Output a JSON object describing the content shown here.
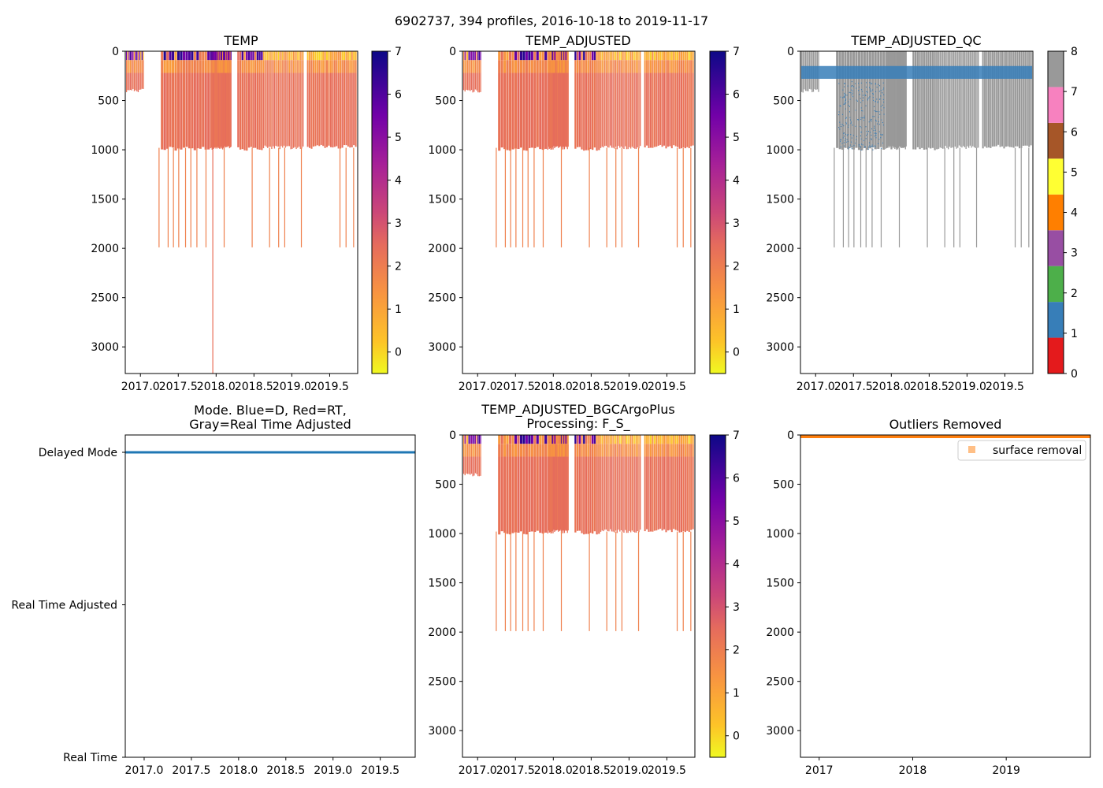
{
  "figure_title": "6902737, 394 profiles, 2016-10-18 to 2019-11-17",
  "colors": {
    "mode_line": "#1f77b4",
    "outlier_marker": "#ff7f0e",
    "qc_gray": "#999999",
    "qc_blue": "#377eb8"
  },
  "chart_data": [
    {
      "id": "temp",
      "type": "heatmap",
      "title": "TEMP",
      "x_range": [
        2016.8,
        2019.87
      ],
      "ylim": [
        3270,
        0
      ],
      "y_ticks": [
        0,
        500,
        1000,
        1500,
        2000,
        2500,
        3000
      ],
      "x_ticks": [
        2017.0,
        2017.5,
        2018.0,
        2018.5,
        2019.0,
        2019.5
      ],
      "x_tick_labels": [
        "2017.0",
        "2017.5",
        "2018.0",
        "2018.5",
        "2019.0",
        "2019.5"
      ],
      "colorbar": {
        "range": [
          -0.5,
          7
        ],
        "ticks": [
          "0",
          "1",
          "2",
          "3",
          "4",
          "5",
          "6",
          "7"
        ]
      },
      "deep_profile_max_depth": 3270
    },
    {
      "id": "temp_adjusted",
      "type": "heatmap",
      "title": "TEMP_ADJUSTED",
      "x_range": [
        2016.8,
        2019.87
      ],
      "ylim": [
        3270,
        0
      ],
      "y_ticks": [
        0,
        500,
        1000,
        1500,
        2000,
        2500,
        3000
      ],
      "x_ticks": [
        2017.0,
        2017.5,
        2018.0,
        2018.5,
        2019.0,
        2019.5
      ],
      "x_tick_labels": [
        "2017.0",
        "2017.5",
        "2018.0",
        "2018.5",
        "2019.0",
        "2019.5"
      ],
      "colorbar": {
        "range": [
          -0.5,
          7
        ],
        "ticks": [
          "0",
          "1",
          "2",
          "3",
          "4",
          "5",
          "6",
          "7"
        ]
      }
    },
    {
      "id": "temp_adjusted_qc",
      "type": "heatmap",
      "title": "TEMP_ADJUSTED_QC",
      "x_range": [
        2016.8,
        2019.87
      ],
      "ylim": [
        3270,
        0
      ],
      "y_ticks": [
        0,
        500,
        1000,
        1500,
        2000,
        2500,
        3000
      ],
      "x_ticks": [
        2017.0,
        2017.5,
        2018.0,
        2018.5,
        2019.0,
        2019.5
      ],
      "x_tick_labels": [
        "2017.0",
        "2017.5",
        "2018.0",
        "2018.5",
        "2019.0",
        "2019.5"
      ],
      "qc_colorbar": {
        "range": [
          0,
          8
        ],
        "ticks": [
          "0",
          "1",
          "2",
          "3",
          "4",
          "5",
          "6",
          "7",
          "8"
        ],
        "colors": [
          "#e41a1c",
          "#377eb8",
          "#4daf4a",
          "#984ea3",
          "#ff7f00",
          "#ffff33",
          "#a65628",
          "#f781bf",
          "#999999"
        ]
      },
      "flag1_band_depth": [
        150,
        280
      ]
    },
    {
      "id": "mode",
      "type": "line",
      "title": "Mode. Blue=D, Red=RT,",
      "title_line2": "Gray=Real Time Adjusted",
      "x_range": [
        2016.8,
        2019.87
      ],
      "x_ticks": [
        2017.0,
        2017.5,
        2018.0,
        2018.5,
        2019.0,
        2019.5
      ],
      "x_tick_labels": [
        "2017.0",
        "2017.5",
        "2018.0",
        "2018.5",
        "2019.0",
        "2019.5"
      ],
      "y_categories": [
        "Delayed Mode",
        "Real Time Adjusted",
        "Real Time"
      ],
      "series": [
        {
          "name": "Delayed Mode",
          "value": "Delayed Mode",
          "x": [
            2016.8,
            2019.87
          ]
        }
      ]
    },
    {
      "id": "bgc",
      "type": "heatmap",
      "title": "TEMP_ADJUSTED_BGCArgoPlus",
      "title_line2": "Processing: F_S_",
      "x_range": [
        2016.8,
        2019.87
      ],
      "ylim": [
        3270,
        0
      ],
      "y_ticks": [
        0,
        500,
        1000,
        1500,
        2000,
        2500,
        3000
      ],
      "x_ticks": [
        2017.0,
        2017.5,
        2018.0,
        2018.5,
        2019.0,
        2019.5
      ],
      "x_tick_labels": [
        "2017.0",
        "2017.5",
        "2018.0",
        "2018.5",
        "2019.0",
        "2019.5"
      ],
      "colorbar": {
        "range": [
          -0.5,
          7
        ],
        "ticks": [
          "0",
          "1",
          "2",
          "3",
          "4",
          "5",
          "6",
          "7"
        ]
      }
    },
    {
      "id": "outliers",
      "type": "scatter",
      "title": "Outliers Removed",
      "x_range": [
        2016.8,
        2019.9
      ],
      "ylim": [
        3270,
        0
      ],
      "y_ticks": [
        0,
        500,
        1000,
        1500,
        2000,
        2500,
        3000
      ],
      "x_ticks": [
        2017,
        2018,
        2019
      ],
      "x_tick_labels": [
        "2017",
        "2018",
        "2019"
      ],
      "legend": {
        "label": "surface removal",
        "location": "upper right"
      },
      "series": [
        {
          "name": "surface removal",
          "depth_range": [
            0,
            30
          ]
        }
      ]
    }
  ],
  "profile_groups": [
    {
      "start": 2016.81,
      "end": 2017.05,
      "count": 14,
      "max_depth": 400
    },
    {
      "start": 2017.27,
      "end": 2017.92,
      "count": 18,
      "max_depth": 990
    },
    {
      "start": 2017.92,
      "end": 2018.2,
      "count": 28,
      "max_depth": 980
    },
    {
      "start": 2018.28,
      "end": 2018.62,
      "count": 12,
      "max_depth": 990
    },
    {
      "start": 2018.62,
      "end": 2019.16,
      "count": 30,
      "max_depth": 975
    },
    {
      "start": 2019.2,
      "end": 2019.86,
      "count": 26,
      "max_depth": 970
    }
  ],
  "deep_profiles": [
    2017.24,
    2017.36,
    2017.43,
    2017.5,
    2017.59,
    2017.66,
    2017.74,
    2017.86,
    2018.1,
    2018.47,
    2018.7,
    2018.82,
    2018.9,
    2019.12,
    2019.63,
    2019.71,
    2019.81
  ]
}
